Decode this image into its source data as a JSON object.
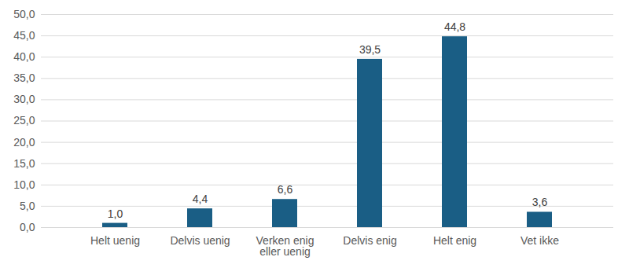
{
  "chart_data": {
    "type": "bar",
    "categories": [
      "Helt uenig",
      "Delvis uenig",
      "Verken enig eller uenig",
      "Delvis enig",
      "Helt enig",
      "Vet ikke"
    ],
    "values": [
      1.0,
      4.4,
      6.6,
      39.5,
      44.8,
      3.6
    ],
    "value_labels": [
      "1,0",
      "4,4",
      "6,6",
      "39,5",
      "44,8",
      "3,6"
    ],
    "color": "#1a5e85",
    "ylim": [
      0,
      50
    ],
    "yticks": [
      {
        "value": 0,
        "label": "0,0"
      },
      {
        "value": 5,
        "label": "5,0"
      },
      {
        "value": 10,
        "label": "10,0"
      },
      {
        "value": 15,
        "label": "15,0"
      },
      {
        "value": 20,
        "label": "20,0"
      },
      {
        "value": 25,
        "label": "25,0"
      },
      {
        "value": 30,
        "label": "30,0"
      },
      {
        "value": 35,
        "label": "35,0"
      },
      {
        "value": 40,
        "label": "40,0"
      },
      {
        "value": 45,
        "label": "45,0"
      },
      {
        "value": 50,
        "label": "50,0"
      }
    ],
    "grid": true,
    "data_labels": true
  }
}
